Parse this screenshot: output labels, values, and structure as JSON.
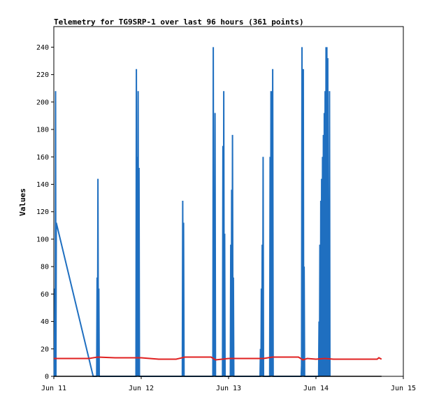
{
  "chart_data": {
    "type": "line",
    "title": "Telemetry for TG9SRP-1 over last 96 hours (361 points)",
    "xlabel": "",
    "ylabel": "Values",
    "x_ticks": [
      "Jun 11",
      "Jun 12",
      "Jun 13",
      "Jun 14",
      "Jun 15"
    ],
    "x_range_days": [
      0,
      4
    ],
    "y_ticks": [
      0,
      20,
      40,
      60,
      80,
      100,
      120,
      140,
      160,
      180,
      200,
      220,
      240
    ],
    "ylim": [
      0,
      255
    ],
    "grid": false,
    "series": [
      {
        "color": "#1f6fc0",
        "points": [
          [
            0.005,
            0
          ],
          [
            0.012,
            64
          ],
          [
            0.016,
            0
          ],
          [
            0.02,
            208
          ],
          [
            0.024,
            0
          ],
          [
            0.028,
            112
          ],
          [
            0.45,
            0
          ],
          [
            0.49,
            0
          ],
          [
            0.495,
            72
          ],
          [
            0.5,
            0
          ],
          [
            0.505,
            144
          ],
          [
            0.51,
            0
          ],
          [
            0.515,
            64
          ],
          [
            0.52,
            0
          ],
          [
            0.94,
            0
          ],
          [
            0.945,
            224
          ],
          [
            0.95,
            0
          ],
          [
            0.955,
            160
          ],
          [
            0.96,
            0
          ],
          [
            0.965,
            208
          ],
          [
            0.97,
            0
          ],
          [
            0.975,
            152
          ],
          [
            0.98,
            0
          ],
          [
            1.47,
            0
          ],
          [
            1.475,
            128
          ],
          [
            1.48,
            0
          ],
          [
            1.485,
            112
          ],
          [
            1.49,
            0
          ],
          [
            1.82,
            0
          ],
          [
            1.825,
            240
          ],
          [
            1.83,
            0
          ],
          [
            1.835,
            96
          ],
          [
            1.84,
            0
          ],
          [
            1.845,
            192
          ],
          [
            1.85,
            0
          ],
          [
            1.93,
            0
          ],
          [
            1.935,
            168
          ],
          [
            1.94,
            0
          ],
          [
            1.945,
            208
          ],
          [
            1.95,
            0
          ],
          [
            1.955,
            104
          ],
          [
            1.96,
            0
          ],
          [
            2.02,
            0
          ],
          [
            2.025,
            96
          ],
          [
            2.03,
            0
          ],
          [
            2.035,
            136
          ],
          [
            2.04,
            0
          ],
          [
            2.045,
            176
          ],
          [
            2.05,
            0
          ],
          [
            2.055,
            72
          ],
          [
            2.06,
            0
          ],
          [
            2.36,
            0
          ],
          [
            2.365,
            20
          ],
          [
            2.37,
            0
          ],
          [
            2.375,
            64
          ],
          [
            2.38,
            0
          ],
          [
            2.385,
            96
          ],
          [
            2.39,
            0
          ],
          [
            2.395,
            160
          ],
          [
            2.4,
            0
          ],
          [
            2.47,
            0
          ],
          [
            2.475,
            160
          ],
          [
            2.48,
            0
          ],
          [
            2.485,
            208
          ],
          [
            2.49,
            0
          ],
          [
            2.495,
            208
          ],
          [
            2.5,
            0
          ],
          [
            2.505,
            224
          ],
          [
            2.51,
            0
          ],
          [
            2.83,
            0
          ],
          [
            2.835,
            8
          ],
          [
            2.84,
            240
          ],
          [
            2.845,
            0
          ],
          [
            2.855,
            224
          ],
          [
            2.86,
            0
          ],
          [
            2.865,
            80
          ],
          [
            2.87,
            0
          ],
          [
            3.03,
            0
          ],
          [
            3.035,
            40
          ],
          [
            3.04,
            0
          ],
          [
            3.045,
            96
          ],
          [
            3.05,
            0
          ],
          [
            3.055,
            128
          ],
          [
            3.06,
            0
          ],
          [
            3.065,
            144
          ],
          [
            3.07,
            0
          ],
          [
            3.075,
            160
          ],
          [
            3.08,
            0
          ],
          [
            3.085,
            176
          ],
          [
            3.09,
            0
          ],
          [
            3.095,
            192
          ],
          [
            3.1,
            0
          ],
          [
            3.105,
            208
          ],
          [
            3.11,
            0
          ],
          [
            3.115,
            240
          ],
          [
            3.12,
            0
          ],
          [
            3.125,
            240
          ],
          [
            3.13,
            0
          ],
          [
            3.135,
            232
          ],
          [
            3.14,
            0
          ],
          [
            3.145,
            104
          ],
          [
            3.15,
            0
          ],
          [
            3.155,
            208
          ],
          [
            3.16,
            0
          ]
        ]
      },
      {
        "color": "#e02020",
        "points": [
          [
            0.0,
            13
          ],
          [
            0.2,
            13
          ],
          [
            0.4,
            13
          ],
          [
            0.5,
            14
          ],
          [
            0.7,
            13.5
          ],
          [
            0.9,
            13.5
          ],
          [
            1.0,
            13.5
          ],
          [
            1.2,
            12.5
          ],
          [
            1.4,
            12.5
          ],
          [
            1.5,
            14
          ],
          [
            1.8,
            14
          ],
          [
            1.85,
            12
          ],
          [
            2.0,
            13
          ],
          [
            2.2,
            13
          ],
          [
            2.4,
            13
          ],
          [
            2.5,
            14
          ],
          [
            2.8,
            14
          ],
          [
            2.85,
            12
          ],
          [
            2.9,
            13
          ],
          [
            3.0,
            12.5
          ],
          [
            3.1,
            13
          ],
          [
            3.2,
            12.5
          ],
          [
            3.5,
            12.5
          ],
          [
            3.7,
            12.5
          ],
          [
            3.72,
            13.5
          ],
          [
            3.75,
            12.5
          ]
        ]
      },
      {
        "color": "#000000",
        "points": [
          [
            0.0,
            0
          ],
          [
            3.75,
            0
          ]
        ]
      }
    ]
  }
}
